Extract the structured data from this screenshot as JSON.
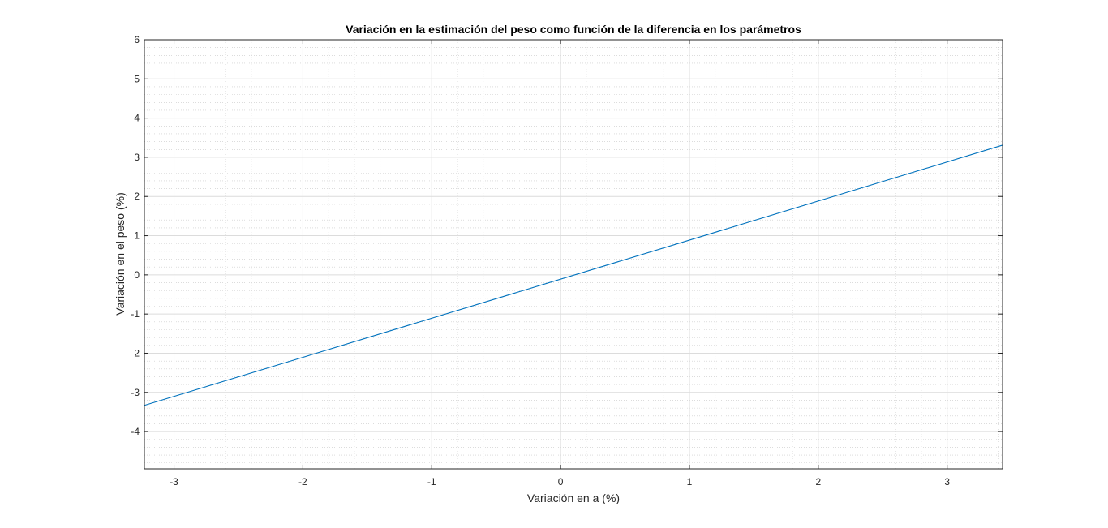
{
  "chart_data": {
    "type": "line",
    "title": "Variación en la estimación del peso como función de la diferencia en los parámetros",
    "xlabel": "Variación en a (%)",
    "ylabel": "Variación en el peso (%)",
    "xlim": [
      -3.23,
      3.43
    ],
    "ylim": [
      -4.95,
      6
    ],
    "xticks": [
      -3,
      -2,
      -1,
      0,
      1,
      2,
      3
    ],
    "yticks": [
      -4,
      -3,
      -2,
      -1,
      0,
      1,
      2,
      3,
      4,
      5,
      6
    ],
    "xtick_labels": [
      "-3",
      "-2",
      "-1",
      "0",
      "1",
      "2",
      "3"
    ],
    "ytick_labels": [
      "-4",
      "-3",
      "-2",
      "-1",
      "0",
      "1",
      "2",
      "3",
      "4",
      "5",
      "6"
    ],
    "minor_grid_step": 0.2,
    "grid": true,
    "minor_grid": true,
    "series": [
      {
        "color": "#0072BD",
        "x": [
          -3.23,
          3.43
        ],
        "y": [
          -3.33,
          3.31
        ]
      }
    ]
  }
}
